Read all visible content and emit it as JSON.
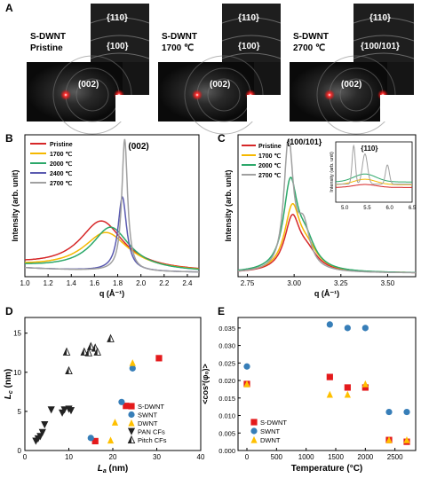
{
  "panels": {
    "A": "A",
    "B": "B",
    "C": "C",
    "D": "D",
    "E": "E"
  },
  "panel_a": {
    "images": [
      {
        "title_line1": "S-DWNT",
        "title_line2": "Pristine",
        "labels": [
          "{110}",
          "{100}",
          "(002)"
        ]
      },
      {
        "title_line1": "S-DWNT",
        "title_line2": "1700 ℃",
        "labels": [
          "{110}",
          "{100}",
          "(002)"
        ]
      },
      {
        "title_line1": "S-DWNT",
        "title_line2": "2700 ℃",
        "labels": [
          "{110}",
          "{100/101}",
          "(002)"
        ]
      }
    ]
  },
  "colors": {
    "pristine": "#d62728",
    "t1700": "#f5b800",
    "t2000": "#2ca86a",
    "t2400": "#5a5ab0",
    "t2700": "#a0a0a0",
    "sdwnt": "#e41a1c",
    "swnt": "#377eb8",
    "dwnt": "#ffc000",
    "cf": "#222222"
  },
  "chart_data": [
    {
      "id": "B",
      "type": "line",
      "xlabel": "q (Å⁻¹)",
      "ylabel": "Intensity (arb. unit)",
      "xlim": [
        1.0,
        2.5
      ],
      "xticks": [
        "1.0",
        "1.2",
        "1.4",
        "1.6",
        "1.8",
        "2.0",
        "2.2",
        "2.4"
      ],
      "peak_label": "(002)",
      "legend": "top-left",
      "series": [
        {
          "name": "Pristine",
          "color": "#d62728",
          "peak": 1.66,
          "height": 0.36,
          "width": 0.23,
          "base": 0.06
        },
        {
          "name": "1700 ℃",
          "color": "#f5b800",
          "peak": 1.7,
          "height": 0.28,
          "width": 0.24,
          "base": 0.05
        },
        {
          "name": "2000 ℃",
          "color": "#2ca86a",
          "peak": 1.74,
          "height": 0.32,
          "width": 0.2,
          "base": 0.05
        },
        {
          "name": "2400 ℃",
          "color": "#5a5ab0",
          "peak": 1.84,
          "height": 0.55,
          "width": 0.045,
          "base": 0.04
        },
        {
          "name": "2700 ℃",
          "color": "#a0a0a0",
          "peak": 1.86,
          "height": 0.98,
          "width": 0.03,
          "base": 0.04
        }
      ]
    },
    {
      "id": "C",
      "type": "line",
      "xlabel": "q (Å⁻¹)",
      "ylabel": "Intensity (arb. unit)",
      "xlim": [
        2.7,
        3.65
      ],
      "xticks": [
        "2.75",
        "3.00",
        "3.25",
        "3.50"
      ],
      "peak_label": "{100/101}",
      "legend": "top-left",
      "series": [
        {
          "name": "Pristine",
          "color": "#d62728",
          "peak": 2.99,
          "height": 0.38,
          "width": 0.05
        },
        {
          "name": "1700 ℃",
          "color": "#f5b800",
          "peak": 2.99,
          "height": 0.45,
          "width": 0.05
        },
        {
          "name": "2000 ℃",
          "color": "#2ca86a",
          "peak": 2.98,
          "height": 0.63,
          "width": 0.045
        },
        {
          "name": "2700 ℃",
          "color": "#a0a0a0",
          "peak": 2.97,
          "height": 0.95,
          "width": 0.03
        }
      ],
      "inset": {
        "label": "{110}",
        "xlabel": "q (Å⁻¹)",
        "ylabel": "Intensity (arb. unit)",
        "xlim": [
          4.8,
          6.5
        ],
        "xticks": [
          "5.0",
          "5.5",
          "6.0",
          "6.5"
        ]
      }
    },
    {
      "id": "D",
      "type": "scatter",
      "xlabel_main": "L",
      "xlabel_sub": "a",
      "xlabel_unit": " (nm)",
      "ylabel_main": "L",
      "ylabel_sub": "c",
      "ylabel_unit": " (nm)",
      "xlim": [
        0,
        40
      ],
      "ylim": [
        0,
        17
      ],
      "xticks": [
        0,
        10,
        20,
        30,
        40
      ],
      "yticks": [
        0,
        5,
        10,
        15
      ],
      "legend": "lower-right",
      "series": [
        {
          "name": "S-DWNT",
          "marker": "square",
          "color": "#e41a1c",
          "points": [
            [
              16,
              1.2
            ],
            [
              23,
              5.7
            ],
            [
              30.5,
              11.8
            ]
          ]
        },
        {
          "name": "SWNT",
          "marker": "circle",
          "color": "#377eb8",
          "points": [
            [
              15,
              1.6
            ],
            [
              22,
              6.2
            ],
            [
              24.5,
              10.5
            ]
          ]
        },
        {
          "name": "DWNT",
          "marker": "triangle-up",
          "color": "#ffc000",
          "points": [
            [
              19.5,
              1.3
            ],
            [
              20.5,
              3.6
            ],
            [
              24.5,
              11.2
            ]
          ]
        },
        {
          "name": "PAN CFs",
          "marker": "triangle-down",
          "color": "#222222",
          "points": [
            [
              2.5,
              1.2
            ],
            [
              3,
              1.5
            ],
            [
              3.5,
              1.8
            ],
            [
              4,
              2.3
            ],
            [
              4.5,
              3.3
            ],
            [
              6,
              5.2
            ],
            [
              8.5,
              4.8
            ],
            [
              9,
              5.2
            ],
            [
              10,
              5.3
            ],
            [
              10.5,
              5.1
            ]
          ]
        },
        {
          "name": "Pitch CFs",
          "marker": "triangle-up-open",
          "color": "#222222",
          "points": [
            [
              9.5,
              12.6
            ],
            [
              10,
              10.2
            ],
            [
              13.5,
              12.6
            ],
            [
              14.5,
              12.5
            ],
            [
              15,
              13.3
            ],
            [
              16,
              13.1
            ],
            [
              16.5,
              12.6
            ],
            [
              19.5,
              14.3
            ]
          ]
        }
      ]
    },
    {
      "id": "E",
      "type": "scatter",
      "xlabel": "Temperature (°C)",
      "ylabel": "<cos²(φ₀)>",
      "xlim": [
        -150,
        2850
      ],
      "ylim": [
        0,
        0.038
      ],
      "xticks": [
        0,
        500,
        1000,
        1500,
        2000,
        2500
      ],
      "yticks": [
        "0.000",
        "0.005",
        "0.010",
        "0.015",
        "0.020",
        "0.025",
        "0.030",
        "0.035"
      ],
      "legend": "lower-left",
      "series": [
        {
          "name": "S-DWNT",
          "marker": "square",
          "color": "#e41a1c",
          "points": [
            [
              0,
              0.019
            ],
            [
              1400,
              0.021
            ],
            [
              1700,
              0.018
            ],
            [
              2000,
              0.018
            ],
            [
              2400,
              0.003
            ],
            [
              2700,
              0.0025
            ]
          ]
        },
        {
          "name": "SWNT",
          "marker": "circle",
          "color": "#377eb8",
          "points": [
            [
              0,
              0.024
            ],
            [
              1400,
              0.036
            ],
            [
              1700,
              0.035
            ],
            [
              2000,
              0.035
            ],
            [
              2400,
              0.011
            ],
            [
              2700,
              0.011
            ]
          ]
        },
        {
          "name": "DWNT",
          "marker": "triangle-up",
          "color": "#ffc000",
          "points": [
            [
              0,
              0.019
            ],
            [
              1400,
              0.016
            ],
            [
              1700,
              0.016
            ],
            [
              2000,
              0.019
            ],
            [
              2400,
              0.003
            ],
            [
              2700,
              0.003
            ]
          ]
        }
      ]
    }
  ]
}
